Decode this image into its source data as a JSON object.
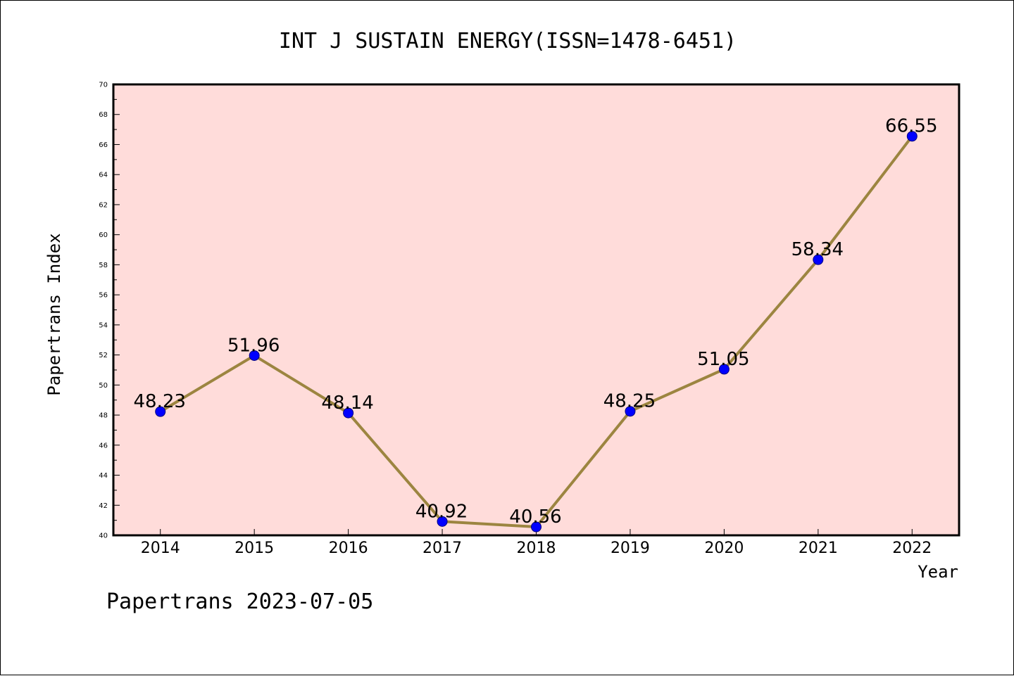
{
  "chart_data": {
    "type": "line",
    "title": "INT J SUSTAIN ENERGY(ISSN=1478-6451)",
    "xlabel": "Year",
    "ylabel": "Papertrans Index",
    "categories": [
      "2014",
      "2015",
      "2016",
      "2017",
      "2018",
      "2019",
      "2020",
      "2021",
      "2022"
    ],
    "values": [
      48.23,
      51.96,
      48.14,
      40.92,
      40.56,
      48.25,
      51.05,
      58.34,
      66.55
    ],
    "data_labels": [
      "48.23",
      "51.96",
      "48.14",
      "40.92",
      "40.56",
      "48.25",
      "51.05",
      "58.34",
      "66.55"
    ],
    "ylim": [
      40,
      70
    ],
    "yticks": [
      "40",
      "42",
      "44",
      "46",
      "48",
      "50",
      "52",
      "54",
      "56",
      "58",
      "60",
      "62",
      "64",
      "66",
      "68",
      "70"
    ],
    "grid": false,
    "legend": "none",
    "footer": "Papertrans 2023-07-05",
    "colors": {
      "plot_background": "#FFDCDA",
      "line": "#9C8540",
      "marker": "#0000FF",
      "marker_edge": "#000080"
    }
  }
}
